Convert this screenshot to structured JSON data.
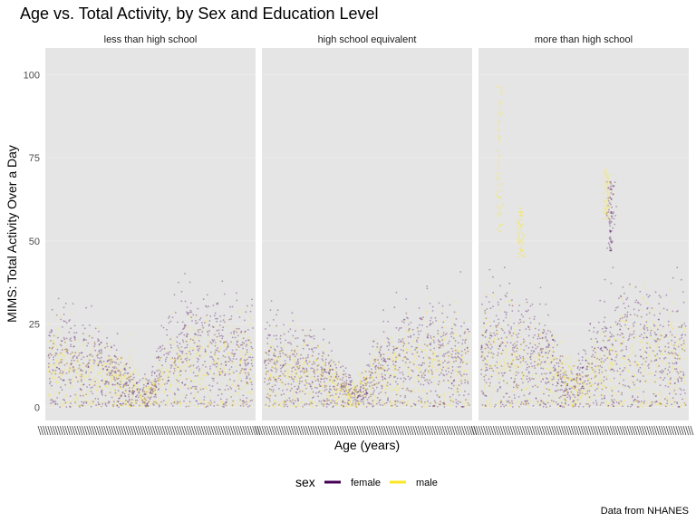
{
  "chart_data": {
    "type": "scatter",
    "title": "Age vs. Total Activity, by Sex and Education Level",
    "xlabel": "Age (years)",
    "ylabel": "MIMS: Total Activity Over a Day",
    "caption": "Data from NHANES",
    "ylim": [
      -4,
      108
    ],
    "yticks": [
      0,
      25,
      50,
      75,
      100
    ],
    "grid": true,
    "legend": {
      "position": "bottom",
      "title": "sex",
      "entries": [
        {
          "label": "female",
          "color": "#440154"
        },
        {
          "label": "male",
          "color": "#FDE725"
        }
      ]
    },
    "facets": [
      {
        "label": "less than high school"
      },
      {
        "label": "high school equivalent"
      },
      {
        "label": "more than high school"
      }
    ],
    "series": [
      {
        "name": "female",
        "facet_profiles": [
          [
            [
              0,
              15
            ],
            [
              0.1,
              14
            ],
            [
              0.25,
              12
            ],
            [
              0.38,
              6
            ],
            [
              0.46,
              4
            ],
            [
              0.52,
              6
            ],
            [
              0.56,
              13
            ],
            [
              0.68,
              18
            ],
            [
              0.85,
              15
            ],
            [
              1,
              14
            ]
          ],
          [
            [
              0,
              13
            ],
            [
              0.1,
              12
            ],
            [
              0.2,
              13
            ],
            [
              0.35,
              7
            ],
            [
              0.45,
              3
            ],
            [
              0.52,
              8
            ],
            [
              0.62,
              13
            ],
            [
              0.8,
              16
            ],
            [
              1,
              14
            ]
          ],
          [
            [
              0,
              17
            ],
            [
              0.12,
              18
            ],
            [
              0.25,
              16
            ],
            [
              0.35,
              12
            ],
            [
              0.42,
              4
            ],
            [
              0.5,
              9
            ],
            [
              0.62,
              16
            ],
            [
              0.72,
              19
            ],
            [
              0.86,
              17
            ],
            [
              1,
              15
            ]
          ]
        ],
        "spikes": [
          {
            "facet": 2,
            "x": 0.63,
            "y_from": 47,
            "y_to": 68
          }
        ]
      },
      {
        "name": "male",
        "facet_profiles": [
          [
            [
              0,
              12
            ],
            [
              0.1,
              11
            ],
            [
              0.3,
              9
            ],
            [
              0.4,
              8
            ],
            [
              0.46,
              3
            ],
            [
              0.52,
              6
            ],
            [
              0.6,
              11
            ],
            [
              0.72,
              14
            ],
            [
              0.9,
              12
            ],
            [
              1,
              12
            ]
          ],
          [
            [
              0,
              10
            ],
            [
              0.12,
              11
            ],
            [
              0.3,
              9
            ],
            [
              0.42,
              3
            ],
            [
              0.5,
              7
            ],
            [
              0.62,
              12
            ],
            [
              0.8,
              14
            ],
            [
              1,
              13
            ]
          ],
          [
            [
              0,
              15
            ],
            [
              0.1,
              14
            ],
            [
              0.28,
              13
            ],
            [
              0.4,
              9
            ],
            [
              0.48,
              5
            ],
            [
              0.55,
              9
            ],
            [
              0.65,
              14
            ],
            [
              0.8,
              16
            ],
            [
              1,
              14
            ]
          ]
        ],
        "spikes": [
          {
            "facet": 2,
            "x": 0.1,
            "y_from": 52,
            "y_to": 97
          },
          {
            "facet": 2,
            "x": 0.2,
            "y_from": 45,
            "y_to": 60
          },
          {
            "facet": 2,
            "x": 0.61,
            "y_from": 56,
            "y_to": 72
          }
        ]
      }
    ]
  }
}
